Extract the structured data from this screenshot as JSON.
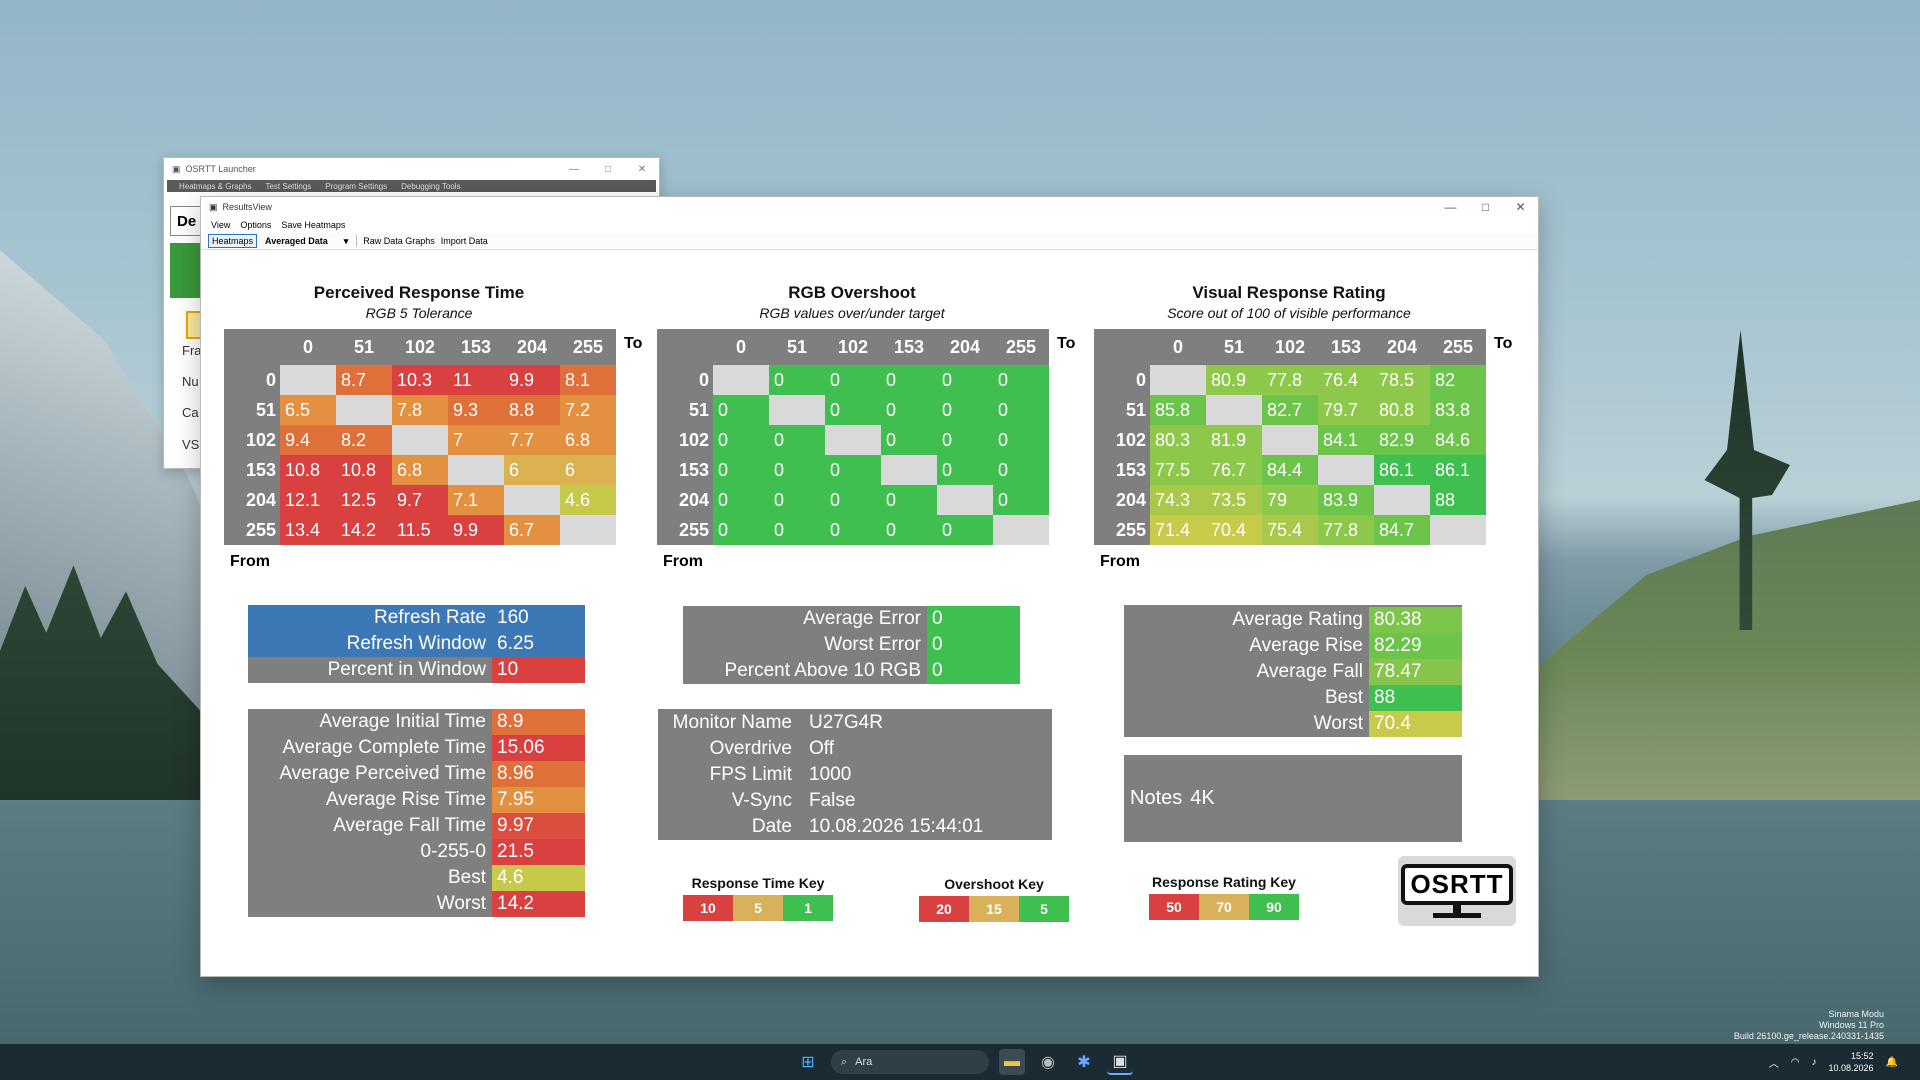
{
  "launcher": {
    "title": "OSRTT Launcher",
    "menu": [
      "Heatmaps & Graphs",
      "Test Settings",
      "Program Settings",
      "Debugging Tools"
    ],
    "field_text": "De",
    "side_labels": [
      "Fra",
      "Nu",
      "Ca",
      "VS"
    ]
  },
  "results": {
    "title": "ResultsView",
    "menu": [
      "View",
      "Options",
      "Save Heatmaps"
    ],
    "toolbar": {
      "tab": "Heatmaps",
      "dropdown": "Averaged Data",
      "links": [
        "Raw Data Graphs",
        "Import Data"
      ]
    }
  },
  "heatmaps": {
    "axis": {
      "to": "To",
      "from": "From"
    },
    "headers": [
      "0",
      "51",
      "102",
      "153",
      "204",
      "255"
    ],
    "prt": {
      "title": "Perceived Response Time",
      "subtitle": "RGB 5 Tolerance",
      "rows": [
        [
          "",
          "8.7",
          "10.3",
          "11",
          "9.9",
          "8.1"
        ],
        [
          "6.5",
          "",
          "7.8",
          "9.3",
          "8.8",
          "7.2"
        ],
        [
          "9.4",
          "8.2",
          "",
          "7",
          "7.7",
          "6.8"
        ],
        [
          "10.8",
          "10.8",
          "6.8",
          "",
          "6",
          "6"
        ],
        [
          "12.1",
          "12.5",
          "9.7",
          "7.1",
          "",
          "4.6"
        ],
        [
          "13.4",
          "14.2",
          "11.5",
          "9.9",
          "6.7",
          ""
        ]
      ]
    },
    "ovs": {
      "title": "RGB Overshoot",
      "subtitle": "RGB values over/under target",
      "rows": [
        [
          "",
          "0",
          "0",
          "0",
          "0",
          "0"
        ],
        [
          "0",
          "",
          "0",
          "0",
          "0",
          "0"
        ],
        [
          "0",
          "0",
          "",
          "0",
          "0",
          "0"
        ],
        [
          "0",
          "0",
          "0",
          "",
          "0",
          "0"
        ],
        [
          "0",
          "0",
          "0",
          "0",
          "",
          "0"
        ],
        [
          "0",
          "0",
          "0",
          "0",
          "0",
          ""
        ]
      ]
    },
    "vrr": {
      "title": "Visual Response Rating",
      "subtitle": "Score out of 100 of visible performance",
      "rows": [
        [
          "",
          "80.9",
          "77.8",
          "76.4",
          "78.5",
          "82"
        ],
        [
          "85.8",
          "",
          "82.7",
          "79.7",
          "80.8",
          "83.8"
        ],
        [
          "80.3",
          "81.9",
          "",
          "84.1",
          "82.9",
          "84.6"
        ],
        [
          "77.5",
          "76.7",
          "84.4",
          "",
          "86.1",
          "86.1"
        ],
        [
          "74.3",
          "73.5",
          "79",
          "83.9",
          "",
          "88"
        ],
        [
          "71.4",
          "70.4",
          "75.4",
          "77.8",
          "84.7",
          ""
        ]
      ]
    }
  },
  "refresh": {
    "rate_label": "Refresh Rate",
    "rate": "160",
    "window_label": "Refresh Window",
    "window": "6.25",
    "pct_label": "Percent in Window",
    "pct": "10"
  },
  "times": [
    {
      "label": "Average Initial Time",
      "value": "8.9",
      "color": "#e0703a"
    },
    {
      "label": "Average Complete Time",
      "value": "15.06",
      "color": "#d94040"
    },
    {
      "label": "Average Perceived Time",
      "value": "8.96",
      "color": "#e0703a"
    },
    {
      "label": "Average Rise Time",
      "value": "7.95",
      "color": "#e39140"
    },
    {
      "label": "Average Fall Time",
      "value": "9.97",
      "color": "#db4d3e"
    },
    {
      "label": "0-255-0",
      "value": "21.5",
      "color": "#d94040"
    },
    {
      "label": "Best",
      "value": "4.6",
      "color": "#c7c94a"
    },
    {
      "label": "Worst",
      "value": "14.2",
      "color": "#d94040"
    }
  ],
  "errors": [
    {
      "label": "Average Error",
      "value": "0"
    },
    {
      "label": "Worst Error",
      "value": "0"
    },
    {
      "label": "Percent Above 10 RGB",
      "value": "0"
    }
  ],
  "info": [
    {
      "label": "Monitor Name",
      "value": "U27G4R"
    },
    {
      "label": "Overdrive",
      "value": "Off"
    },
    {
      "label": "FPS Limit",
      "value": "1000"
    },
    {
      "label": "V-Sync",
      "value": "False"
    },
    {
      "label": "Date",
      "value": "10.08.2026 15:44:01"
    }
  ],
  "ratings": [
    {
      "label": "Average Rating",
      "value": "80.38",
      "color": "#7cc64a"
    },
    {
      "label": "Average Rise",
      "value": "82.29",
      "color": "#6cc44a"
    },
    {
      "label": "Average Fall",
      "value": "78.47",
      "color": "#86c54a"
    },
    {
      "label": "Best",
      "value": "88",
      "color": "#3fbf4f"
    },
    {
      "label": "Worst",
      "value": "70.4",
      "color": "#c8cb4a"
    }
  ],
  "notes": {
    "label": "Notes",
    "value": "4K"
  },
  "keys": {
    "rt": {
      "title": "Response Time Key",
      "items": [
        "10",
        "5",
        "1"
      ]
    },
    "os": {
      "title": "Overshoot Key",
      "items": [
        "20",
        "15",
        "5"
      ]
    },
    "rr": {
      "title": "Response Rating Key",
      "items": [
        "50",
        "70",
        "90"
      ]
    }
  },
  "key_colors": [
    "#d94040",
    "#d9b15a",
    "#3fbf4f"
  ],
  "logo_text": "OSRTT",
  "taskbar": {
    "search_placeholder": "Ara",
    "clock_time": "15:52",
    "clock_date": "10.08.2026"
  },
  "watermark": [
    "Sinama Modu",
    "Windows 11 Pro",
    "Build 26100.ge_release.240331-1435"
  ]
}
